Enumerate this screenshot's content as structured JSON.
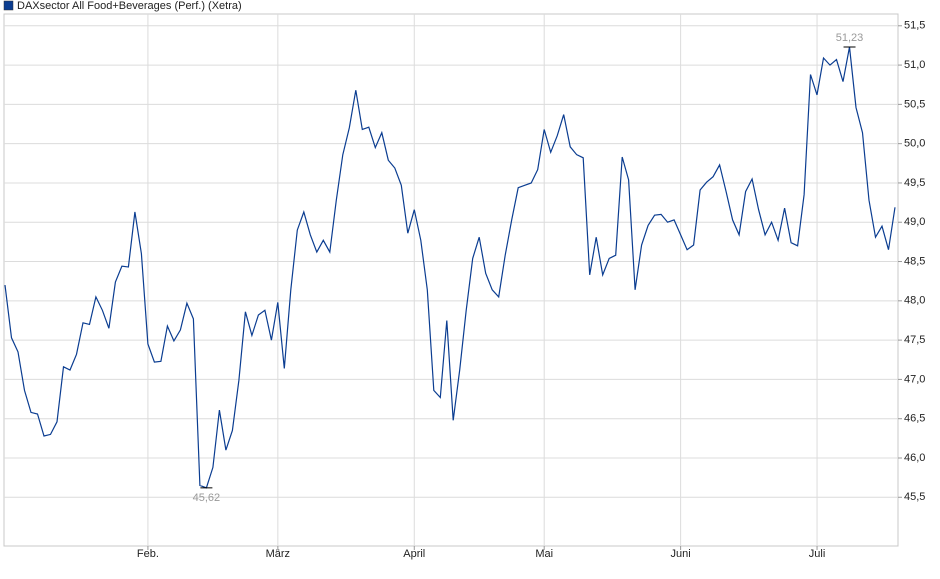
{
  "chart_data": {
    "type": "line",
    "categories": [
      null,
      null,
      null,
      null,
      null,
      null,
      null,
      null,
      null,
      null,
      null,
      null,
      null,
      null,
      null,
      null,
      null,
      null,
      null,
      null,
      null,
      null,
      "Feb.",
      null,
      null,
      null,
      null,
      null,
      null,
      null,
      null,
      null,
      null,
      null,
      null,
      null,
      null,
      null,
      null,
      null,
      null,
      null,
      "März",
      null,
      null,
      null,
      null,
      null,
      null,
      null,
      null,
      null,
      null,
      null,
      null,
      null,
      null,
      null,
      null,
      null,
      null,
      null,
      null,
      "April",
      null,
      null,
      null,
      null,
      null,
      null,
      null,
      null,
      null,
      null,
      null,
      null,
      null,
      null,
      null,
      null,
      null,
      null,
      null,
      "Mai",
      null,
      null,
      null,
      null,
      null,
      null,
      null,
      null,
      null,
      null,
      null,
      null,
      null,
      null,
      null,
      null,
      null,
      null,
      null,
      null,
      "Juni",
      null,
      null,
      null,
      null,
      null,
      null,
      null,
      null,
      null,
      null,
      null,
      null,
      null,
      null,
      null,
      null,
      null,
      null,
      null,
      null,
      "Juli",
      null,
      null,
      null,
      null,
      null,
      null,
      null,
      null,
      null,
      null,
      null,
      null
    ],
    "series": [
      {
        "name": "DAXsector All Food+Beverages (Perf.) (Xetra)",
        "color": "#0b3d91",
        "values": [
          48.2,
          47.53,
          47.35,
          46.86,
          46.58,
          46.56,
          46.28,
          46.3,
          46.46,
          47.16,
          47.12,
          47.32,
          47.72,
          47.7,
          48.05,
          47.88,
          47.65,
          48.24,
          48.44,
          48.43,
          49.13,
          48.6,
          47.45,
          47.22,
          47.23,
          47.68,
          47.49,
          47.63,
          47.97,
          47.77,
          45.65,
          45.62,
          45.88,
          46.61,
          46.1,
          46.35,
          46.99,
          47.86,
          47.56,
          47.82,
          47.88,
          47.5,
          47.98,
          47.14,
          48.14,
          48.9,
          49.13,
          48.84,
          48.62,
          48.77,
          48.62,
          49.28,
          49.86,
          50.2,
          50.68,
          50.18,
          50.21,
          49.95,
          50.14,
          49.79,
          49.69,
          49.47,
          48.86,
          49.16,
          48.77,
          48.14,
          46.86,
          46.77,
          47.75,
          46.48,
          47.12,
          47.88,
          48.54,
          48.81,
          48.35,
          48.14,
          48.05,
          48.58,
          49.03,
          49.44,
          49.47,
          49.5,
          49.67,
          50.18,
          49.89,
          50.1,
          50.37,
          49.96,
          49.86,
          49.82,
          48.33,
          48.81,
          48.33,
          48.54,
          48.58,
          49.83,
          49.54,
          48.14,
          48.71,
          48.96,
          49.09,
          49.1,
          49.0,
          49.03,
          48.84,
          48.65,
          48.71,
          49.41,
          49.51,
          49.58,
          49.73,
          49.39,
          49.03,
          48.84,
          49.39,
          49.55,
          49.16,
          48.84,
          49.0,
          48.77,
          49.18,
          48.74,
          48.7,
          49.35,
          50.88,
          50.62,
          51.09,
          51.0,
          51.07,
          50.79,
          51.23,
          50.46,
          50.14,
          49.28,
          48.81,
          48.95,
          48.65,
          49.19
        ]
      }
    ],
    "ylim": [
      44.88,
      51.65
    ],
    "yticks": [
      {
        "value": 45.5,
        "label": "45,5"
      },
      {
        "value": 46,
        "label": "46,0"
      },
      {
        "value": 46.5,
        "label": "46,5"
      },
      {
        "value": 47,
        "label": "47,0"
      },
      {
        "value": 47.5,
        "label": "47,5"
      },
      {
        "value": 48,
        "label": "48,0"
      },
      {
        "value": 48.5,
        "label": "48,5"
      },
      {
        "value": 49,
        "label": "49,0"
      },
      {
        "value": 49.5,
        "label": "49,5"
      },
      {
        "value": 50,
        "label": "50,0"
      },
      {
        "value": 50.5,
        "label": "50,5"
      },
      {
        "value": 51,
        "label": "51,0"
      },
      {
        "value": 51.5,
        "label": "51,5"
      }
    ],
    "grid": true,
    "annotations": [
      {
        "label": "45,62",
        "value": 45.62
      },
      {
        "label": "51,23",
        "value": 51.23
      }
    ]
  }
}
